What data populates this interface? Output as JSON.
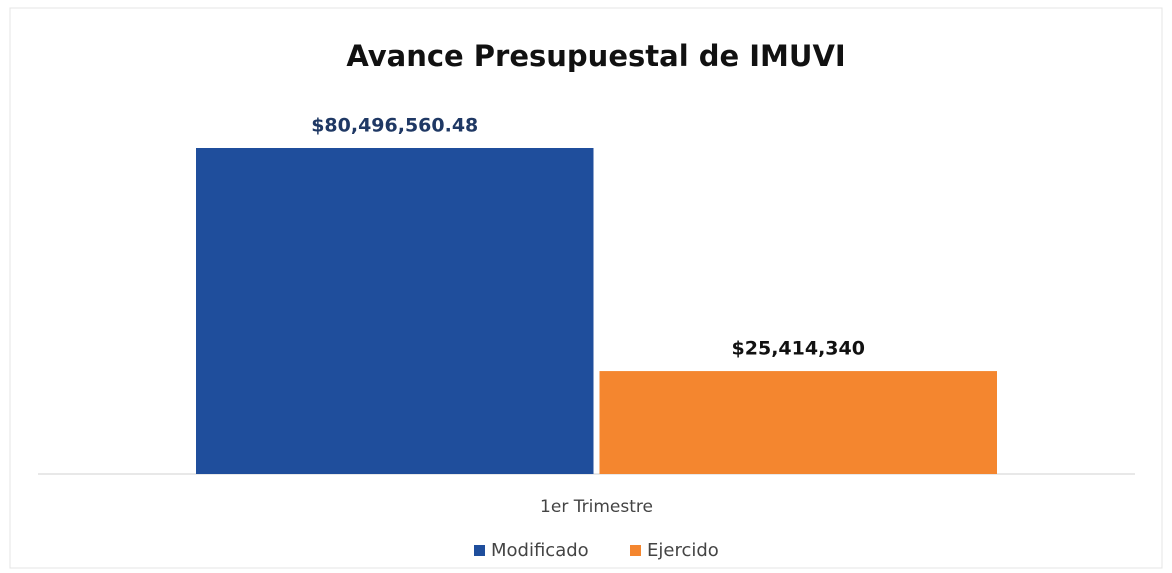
{
  "chart_data": {
    "type": "bar",
    "title": "Avance Presupuestal de IMUVI",
    "categories": [
      "1er Trimestre"
    ],
    "series": [
      {
        "name": "Modificado",
        "color": "#1f4e9c",
        "values": [
          80496560.48
        ],
        "value_labels": [
          "$80,496,560.48"
        ]
      },
      {
        "name": "Ejercido",
        "color": "#f4862f",
        "values": [
          25414340
        ],
        "value_labels": [
          "$25,414,340"
        ]
      }
    ],
    "legend": "bottom"
  }
}
